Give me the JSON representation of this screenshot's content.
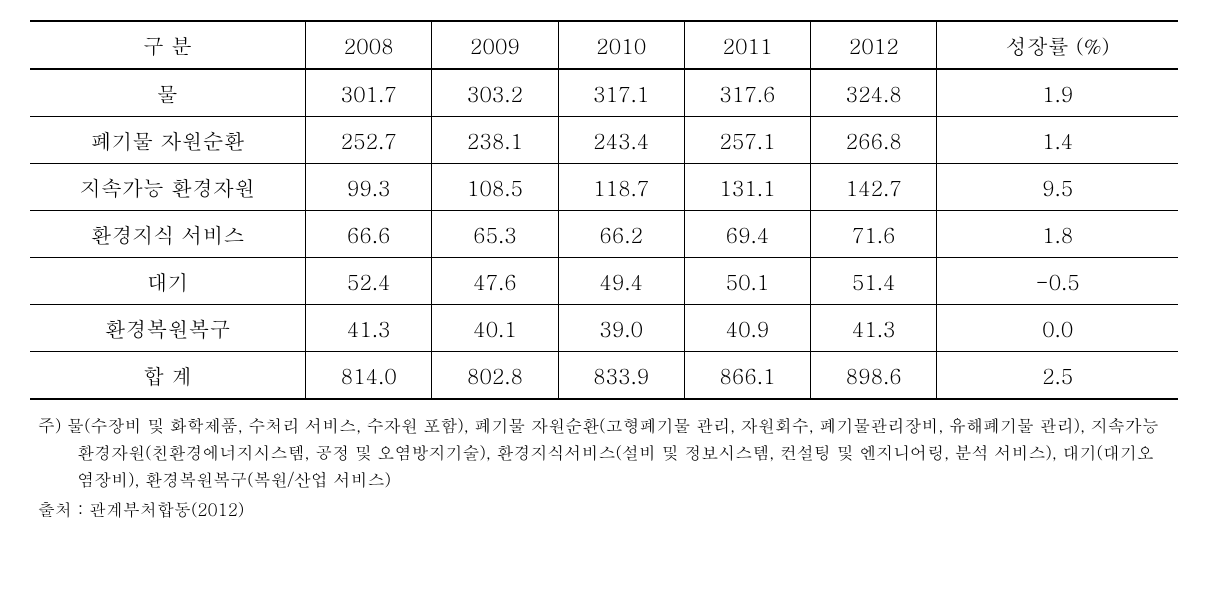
{
  "table": {
    "columns": [
      "구  분",
      "2008",
      "2009",
      "2010",
      "2011",
      "2012",
      "성장률 (%)"
    ],
    "rows": [
      {
        "label": "물",
        "cells": [
          "301.7",
          "303.2",
          "317.1",
          "317.6",
          "324.8",
          "1.9"
        ]
      },
      {
        "label": "폐기물 자원순환",
        "cells": [
          "252.7",
          "238.1",
          "243.4",
          "257.1",
          "266.8",
          "1.4"
        ]
      },
      {
        "label": "지속가능 환경자원",
        "cells": [
          "99.3",
          "108.5",
          "118.7",
          "131.1",
          "142.7",
          "9.5"
        ]
      },
      {
        "label": "환경지식 서비스",
        "cells": [
          "66.6",
          "65.3",
          "66.2",
          "69.4",
          "71.6",
          "1.8"
        ]
      },
      {
        "label": "대기",
        "cells": [
          "52.4",
          "47.6",
          "49.4",
          "50.1",
          "51.4",
          "-0.5"
        ]
      },
      {
        "label": "환경복원복구",
        "cells": [
          "41.3",
          "40.1",
          "39.0",
          "40.9",
          "41.3",
          "0.0"
        ]
      },
      {
        "label": "합   계",
        "cells": [
          "814.0",
          "802.8",
          "833.9",
          "866.1",
          "898.6",
          "2.5"
        ]
      }
    ],
    "header_fontsize": 21,
    "cell_fontsize": 21,
    "border_color": "#000000",
    "outer_border_width": 2,
    "inner_border_width": 1,
    "background_color": "#ffffff",
    "text_color": "#000000",
    "col_widths_pct": [
      24,
      11,
      11,
      11,
      11,
      11,
      21
    ],
    "text_align": "center"
  },
  "footnotes": {
    "note": "주) 물(수장비 및 화학제품, 수처리 서비스, 수자원 포함), 폐기물 자원순환(고형폐기물 관리, 자원회수, 폐기물관리장비, 유해폐기물 관리), 지속가능 환경자원(친환경에너지시스템, 공정 및 오염방지기술), 환경지식서비스(설비 및 정보시스템, 컨설팅 및 엔지니어링, 분석 서비스), 대기(대기오염장비), 환경복원복구(복원/산업 서비스)",
    "source": "출처 : 관계부처합동(2012)",
    "fontsize": 17,
    "line_height": 1.6,
    "text_color": "#000000"
  }
}
